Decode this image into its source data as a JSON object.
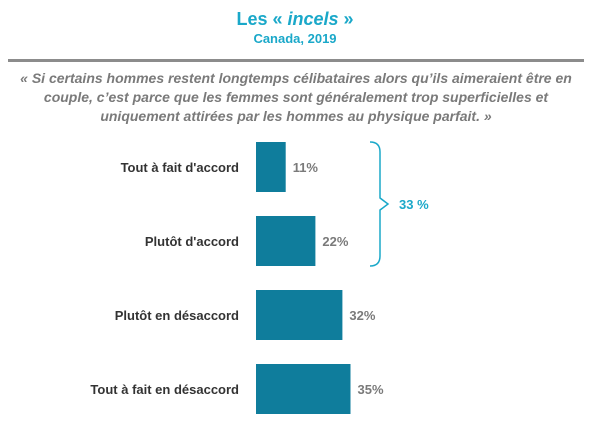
{
  "header": {
    "title_prefix": "Les « ",
    "title_emphasis": "incels",
    "title_suffix": " »",
    "subtitle": "Canada, 2019"
  },
  "quote": "«  Si certains hommes restent longtemps célibataires alors qu’ils aimeraient être en couple, c’est parce que les femmes sont généralement  trop superficielles et uniquement attirées par les hommes au physique parfait. »",
  "colors": {
    "accent": "#1aa8c9",
    "bar": "#0f7d9c",
    "text": "#333333",
    "value": "#7a7a7a",
    "rule": "#8c8c8c"
  },
  "chart_data": {
    "type": "bar",
    "orientation": "horizontal",
    "categories": [
      "Tout à fait d'accord",
      "Plutôt d'accord",
      "Plutôt en désaccord",
      "Tout à fait en désaccord"
    ],
    "values": [
      11,
      22,
      32,
      35
    ],
    "value_labels": [
      "11%",
      "22%",
      "32%",
      "35%"
    ],
    "unit": "%",
    "grid": false,
    "annotation": {
      "text": "33 %",
      "spans_categories": [
        0,
        1
      ]
    }
  }
}
